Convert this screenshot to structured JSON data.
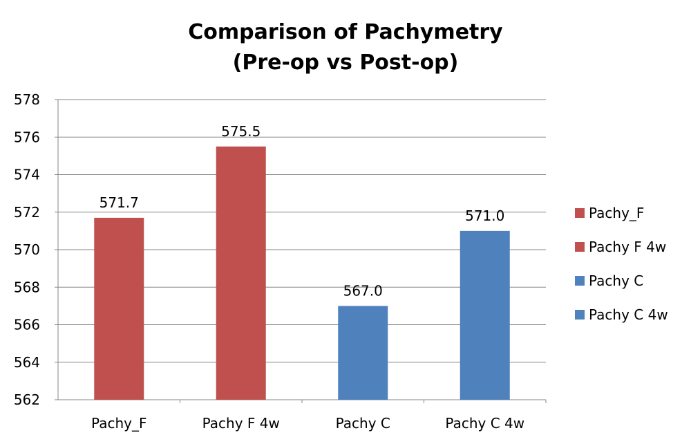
{
  "chart_data": {
    "type": "bar",
    "title_lines": [
      "Comparison of Pachymetry",
      "(Pre-op vs Post-op)"
    ],
    "categories": [
      "Pachy_F",
      "Pachy F 4w",
      "Pachy C",
      "Pachy C 4w"
    ],
    "values": [
      571.7,
      575.5,
      567.0,
      571.0
    ],
    "data_labels": [
      "571.7",
      "575.5",
      "567.0",
      "571.0"
    ],
    "colors": [
      "#c0504d",
      "#c0504d",
      "#4f81bd",
      "#4f81bd"
    ],
    "ylim": [
      562,
      578
    ],
    "yticks": [
      562,
      564,
      566,
      568,
      570,
      572,
      574,
      576,
      578
    ],
    "xlabel": "",
    "ylabel": "",
    "grid": true,
    "legend": {
      "placement": "right",
      "entries": [
        {
          "label": "Pachy_F",
          "color": "#c0504d"
        },
        {
          "label": "Pachy F 4w",
          "color": "#c0504d"
        },
        {
          "label": "Pachy C",
          "color": "#4f81bd"
        },
        {
          "label": "Pachy C 4w",
          "color": "#4f81bd"
        }
      ]
    }
  }
}
